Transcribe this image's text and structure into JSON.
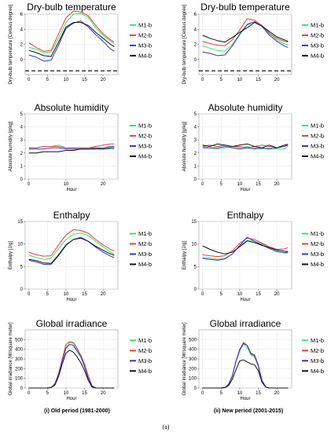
{
  "colors": {
    "M1-b": "#2ee66b",
    "M2-b": "#e64040",
    "M3-b": "#3535c8",
    "M4-b": "#111111"
  },
  "captions": {
    "old": "(i) Old period (1981-2000)",
    "new": "(ii) New period (2001-2015)",
    "figure": "(a)"
  },
  "chart_data": [
    {
      "type": "line",
      "title": "Dry-bulb temperature",
      "xlabel": "",
      "ylabel": "Dry-bulb temperature [Celsius degree]",
      "xlim": [
        -1,
        24
      ],
      "ylim": [
        -2,
        6
      ],
      "xticks": [
        0,
        5,
        10,
        15,
        20
      ],
      "yticks": [
        0,
        2,
        4,
        6
      ],
      "dashed_y": -1.5,
      "x": [
        0,
        2,
        4,
        6,
        8,
        10,
        12,
        14,
        16,
        18,
        20,
        22,
        23
      ],
      "series": [
        {
          "name": "M1-b",
          "values": [
            1.6,
            1.4,
            0.9,
            1.0,
            2.8,
            4.9,
            6.0,
            6.1,
            5.6,
            4.2,
            3.2,
            2.4,
            2.1
          ]
        },
        {
          "name": "M2-b",
          "values": [
            2.2,
            1.6,
            1.1,
            1.2,
            3.4,
            5.5,
            6.4,
            6.3,
            5.8,
            4.5,
            3.4,
            2.6,
            2.3
          ]
        },
        {
          "name": "M3-b",
          "values": [
            0.6,
            0.3,
            -0.2,
            -0.1,
            1.9,
            4.1,
            4.8,
            5.1,
            4.3,
            3.3,
            2.4,
            1.4,
            1.1
          ]
        },
        {
          "name": "M4-b",
          "values": [
            1.2,
            0.9,
            0.5,
            0.4,
            2.3,
            4.3,
            4.9,
            4.9,
            4.5,
            3.6,
            2.8,
            2.0,
            1.7
          ]
        }
      ]
    },
    {
      "type": "line",
      "title": "Dry-bulb temperature",
      "xlabel": "",
      "ylabel": "Dry-bulb temperature [Celsius degree]",
      "xlim": [
        -1,
        24
      ],
      "ylim": [
        -2,
        6
      ],
      "xticks": [
        0,
        5,
        10,
        15,
        20
      ],
      "yticks": [
        0,
        2,
        4,
        6
      ],
      "dashed_y": -1.5,
      "x": [
        0,
        2,
        4,
        6,
        8,
        10,
        12,
        14,
        16,
        18,
        20,
        22,
        23
      ],
      "series": [
        {
          "name": "M1-b",
          "values": [
            1.8,
            1.5,
            1.2,
            1.1,
            2.0,
            3.4,
            4.7,
            5.0,
            4.4,
            3.4,
            2.6,
            2.1,
            1.9
          ]
        },
        {
          "name": "M2-b",
          "values": [
            2.4,
            2.1,
            1.9,
            1.8,
            2.6,
            3.9,
            5.4,
            5.2,
            4.5,
            3.5,
            2.8,
            2.4,
            2.3
          ]
        },
        {
          "name": "M3-b",
          "values": [
            1.0,
            0.8,
            0.5,
            0.6,
            1.8,
            3.3,
            4.6,
            5.0,
            4.4,
            3.2,
            2.4,
            1.8,
            1.6
          ]
        },
        {
          "name": "M4-b",
          "values": [
            3.2,
            2.8,
            2.5,
            2.3,
            2.9,
            3.6,
            4.2,
            4.9,
            4.4,
            3.7,
            3.0,
            2.6,
            2.4
          ]
        }
      ]
    },
    {
      "type": "line",
      "title": "Absolute humidity",
      "xlabel": "Hour",
      "ylabel": "Absolute humidity [g/kg]",
      "xlim": [
        -1,
        24
      ],
      "ylim": [
        0,
        5
      ],
      "xticks": [
        0,
        10,
        20
      ],
      "yticks": [
        0,
        1,
        2,
        3,
        4,
        5
      ],
      "x": [
        0,
        2,
        4,
        6,
        8,
        10,
        12,
        14,
        16,
        18,
        20,
        22,
        23
      ],
      "series": [
        {
          "name": "M1-b",
          "values": [
            2.4,
            2.4,
            2.5,
            2.5,
            2.6,
            2.4,
            2.4,
            2.4,
            2.4,
            2.4,
            2.3,
            2.3,
            2.3
          ]
        },
        {
          "name": "M2-b",
          "values": [
            2.4,
            2.4,
            2.5,
            2.5,
            2.5,
            2.4,
            2.4,
            2.4,
            2.4,
            2.5,
            2.6,
            2.7,
            2.7
          ]
        },
        {
          "name": "M3-b",
          "values": [
            2.3,
            2.3,
            2.3,
            2.4,
            2.4,
            2.3,
            2.3,
            2.3,
            2.3,
            2.4,
            2.4,
            2.5,
            2.5
          ]
        },
        {
          "name": "M4-b",
          "values": [
            2.0,
            2.0,
            2.1,
            2.1,
            2.1,
            2.2,
            2.2,
            2.3,
            2.3,
            2.3,
            2.3,
            2.4,
            2.4
          ]
        }
      ]
    },
    {
      "type": "line",
      "title": "Absolute humidity",
      "xlabel": "Hour",
      "ylabel": "Absolute humidity [g/kg]",
      "xlim": [
        -1,
        24
      ],
      "ylim": [
        0,
        5
      ],
      "xticks": [
        0,
        5,
        10,
        15,
        20
      ],
      "yticks": [
        0,
        1,
        2,
        3,
        4,
        5
      ],
      "x": [
        0,
        2,
        4,
        6,
        8,
        10,
        12,
        14,
        16,
        18,
        20,
        22,
        23
      ],
      "series": [
        {
          "name": "M1-b",
          "values": [
            2.5,
            2.4,
            2.3,
            2.4,
            2.5,
            2.4,
            2.5,
            2.4,
            2.3,
            2.4,
            2.3,
            2.3,
            2.5
          ]
        },
        {
          "name": "M2-b",
          "values": [
            2.5,
            2.6,
            2.5,
            2.6,
            2.5,
            2.5,
            2.4,
            2.5,
            2.6,
            2.5,
            2.4,
            2.6,
            2.7
          ]
        },
        {
          "name": "M3-b",
          "values": [
            2.4,
            2.4,
            2.4,
            2.5,
            2.4,
            2.3,
            2.4,
            2.3,
            2.4,
            2.3,
            2.4,
            2.5,
            2.6
          ]
        },
        {
          "name": "M4-b",
          "values": [
            2.6,
            2.5,
            2.7,
            2.6,
            2.5,
            2.6,
            2.7,
            2.5,
            2.4,
            2.6,
            2.4,
            2.6,
            2.6
          ]
        }
      ]
    },
    {
      "type": "line",
      "title": "Enthalpy",
      "xlabel": "Hour",
      "ylabel": "Enthalpy [J/g]",
      "xlim": [
        -1,
        24
      ],
      "ylim": [
        0,
        15
      ],
      "xticks": [
        0,
        5,
        10,
        15,
        20
      ],
      "yticks": [
        0,
        5,
        10,
        15
      ],
      "x": [
        0,
        2,
        4,
        6,
        8,
        10,
        12,
        14,
        16,
        18,
        20,
        22,
        23
      ],
      "series": [
        {
          "name": "M1-b",
          "values": [
            7.5,
            7.0,
            6.6,
            6.8,
            9.0,
            11.0,
            12.2,
            12.4,
            11.9,
            10.6,
            9.4,
            8.2,
            7.8
          ]
        },
        {
          "name": "M2-b",
          "values": [
            8.2,
            7.6,
            7.3,
            7.4,
            9.8,
            12.0,
            13.2,
            13.0,
            12.4,
            11.0,
            9.8,
            8.8,
            8.5
          ]
        },
        {
          "name": "M3-b",
          "values": [
            6.4,
            6.0,
            5.5,
            5.5,
            7.4,
            9.7,
            11.0,
            11.5,
            10.6,
            9.3,
            8.2,
            7.3,
            7.0
          ]
        },
        {
          "name": "M4-b",
          "values": [
            6.6,
            6.3,
            5.8,
            5.7,
            7.6,
            9.8,
            11.0,
            11.3,
            10.6,
            9.5,
            8.6,
            7.8,
            7.5
          ]
        }
      ]
    },
    {
      "type": "line",
      "title": "Enthalpy",
      "xlabel": "Hour",
      "ylabel": "Enthalpy [J/g]",
      "xlim": [
        -1,
        24
      ],
      "ylim": [
        0,
        15
      ],
      "xticks": [
        0,
        5,
        10,
        15,
        20
      ],
      "yticks": [
        0,
        5,
        10,
        15
      ],
      "x": [
        0,
        2,
        4,
        6,
        8,
        10,
        12,
        14,
        16,
        18,
        20,
        22,
        23
      ],
      "series": [
        {
          "name": "M1-b",
          "values": [
            7.0,
            6.9,
            6.6,
            6.8,
            7.8,
            9.6,
            10.8,
            10.6,
            10.0,
            9.2,
            8.5,
            8.0,
            8.0
          ]
        },
        {
          "name": "M2-b",
          "values": [
            7.6,
            7.4,
            7.2,
            7.4,
            8.5,
            10.2,
            11.3,
            11.0,
            10.2,
            9.4,
            8.8,
            8.9,
            9.2
          ]
        },
        {
          "name": "M3-b",
          "values": [
            6.8,
            6.6,
            6.4,
            6.7,
            7.8,
            9.7,
            11.5,
            10.6,
            9.8,
            9.0,
            8.3,
            8.1,
            8.2
          ]
        },
        {
          "name": "M4-b",
          "values": [
            9.6,
            8.8,
            8.2,
            7.8,
            8.2,
            9.4,
            10.7,
            10.3,
            9.7,
            9.2,
            8.7,
            8.4,
            8.3
          ]
        }
      ]
    },
    {
      "type": "line",
      "title": "Global irradiance",
      "xlabel": "Hour",
      "ylabel": "Global irradiance [W/square meter]",
      "xlim": [
        -1,
        24
      ],
      "ylim": [
        0,
        600
      ],
      "xticks": [
        0,
        5,
        10,
        15,
        20
      ],
      "yticks": [
        0,
        100,
        200,
        300,
        400,
        500
      ],
      "x": [
        0,
        5,
        6,
        7,
        8,
        9,
        10,
        11,
        12,
        13,
        14,
        15,
        16,
        17,
        18,
        23
      ],
      "series": [
        {
          "name": "M1-b",
          "values": [
            0,
            0,
            5,
            40,
            140,
            290,
            420,
            470,
            460,
            400,
            330,
            230,
            110,
            20,
            0,
            0
          ]
        },
        {
          "name": "M2-b",
          "values": [
            0,
            0,
            5,
            45,
            150,
            300,
            450,
            480,
            470,
            410,
            340,
            250,
            130,
            25,
            0,
            0
          ]
        },
        {
          "name": "M3-b",
          "values": [
            0,
            0,
            5,
            40,
            135,
            280,
            410,
            450,
            440,
            380,
            320,
            220,
            100,
            20,
            0,
            0
          ]
        },
        {
          "name": "M4-b",
          "values": [
            0,
            0,
            5,
            30,
            120,
            250,
            360,
            390,
            370,
            320,
            260,
            180,
            80,
            10,
            0,
            0
          ]
        }
      ]
    },
    {
      "type": "line",
      "title": "Global irradiance",
      "xlabel": "Hour",
      "ylabel": "Global irradiance [W/square meter]",
      "xlim": [
        -1,
        24
      ],
      "ylim": [
        0,
        600
      ],
      "xticks": [
        0,
        5,
        10,
        15,
        20
      ],
      "yticks": [
        0,
        100,
        200,
        300,
        400,
        500
      ],
      "x": [
        0,
        5,
        6,
        7,
        8,
        9,
        10,
        11,
        12,
        13,
        14,
        15,
        16,
        17,
        18,
        23
      ],
      "series": [
        {
          "name": "M1-b",
          "values": [
            0,
            0,
            5,
            35,
            120,
            270,
            380,
            450,
            420,
            340,
            320,
            220,
            60,
            10,
            0,
            0
          ]
        },
        {
          "name": "M2-b",
          "values": [
            0,
            0,
            5,
            40,
            130,
            280,
            390,
            470,
            440,
            350,
            330,
            230,
            70,
            10,
            0,
            0
          ]
        },
        {
          "name": "M3-b",
          "values": [
            0,
            0,
            5,
            40,
            125,
            280,
            400,
            460,
            440,
            360,
            340,
            240,
            80,
            10,
            0,
            0
          ]
        },
        {
          "name": "M4-b",
          "values": [
            0,
            0,
            5,
            25,
            90,
            190,
            280,
            290,
            270,
            250,
            240,
            180,
            60,
            10,
            0,
            0
          ]
        }
      ]
    }
  ]
}
